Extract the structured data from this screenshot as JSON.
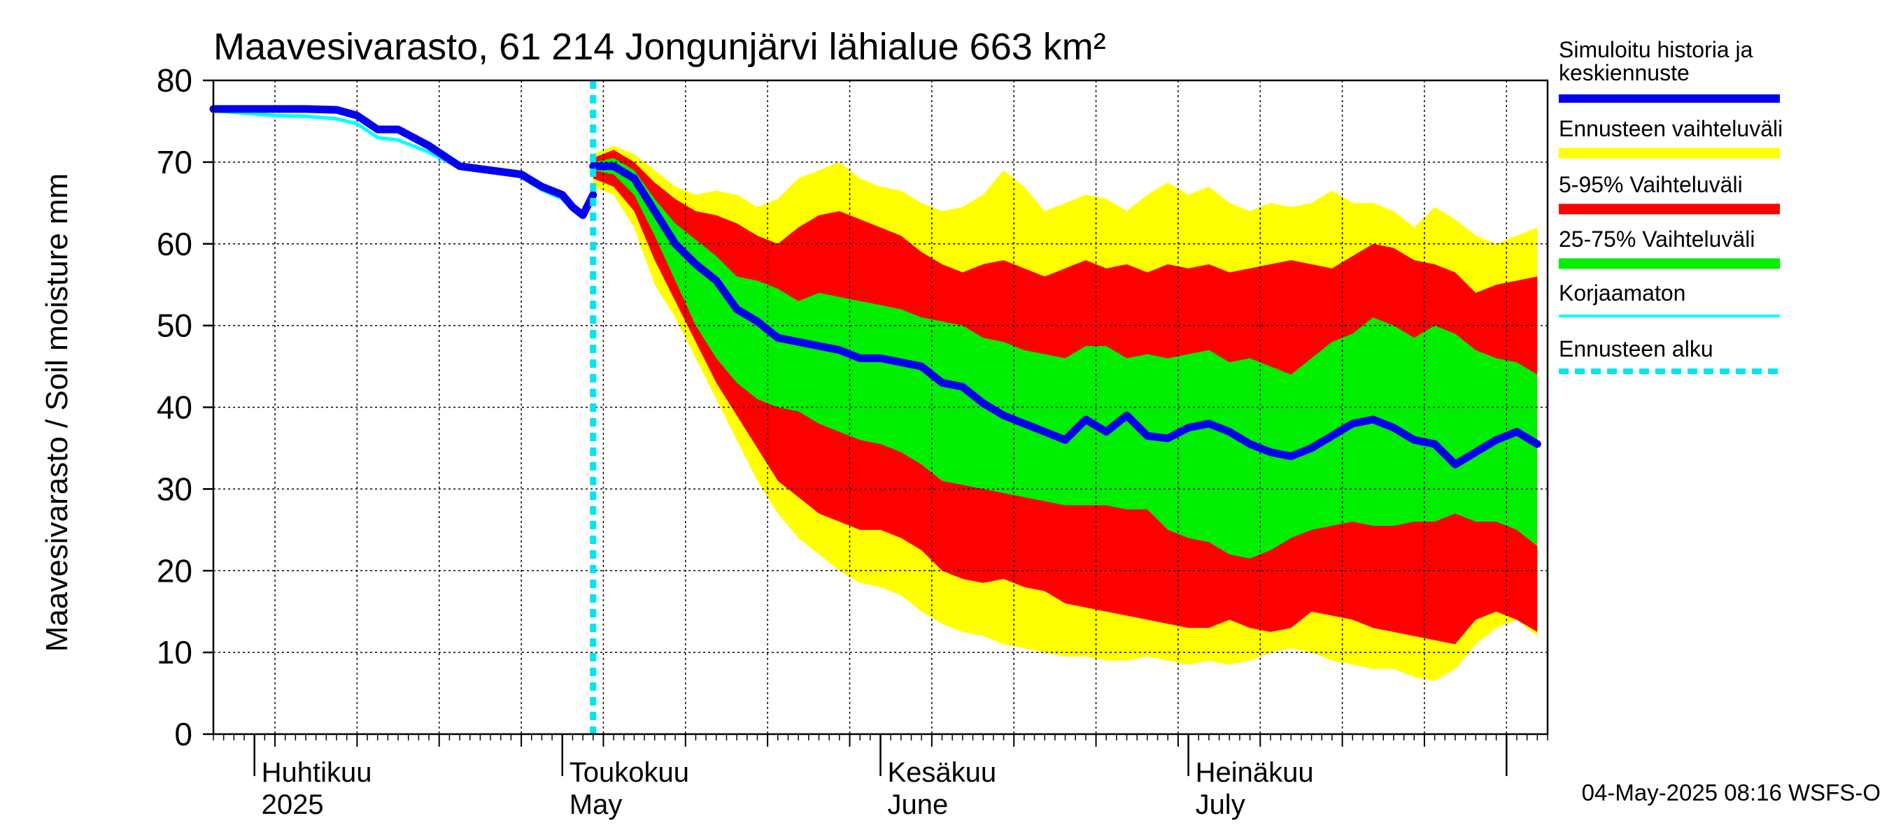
{
  "chart_data": {
    "type": "area",
    "title": "Maavesivarasto, 61 214 Jongunjärvi lähialue 663 km²",
    "ylabel": "Maavesivarasto / Soil moisture   mm",
    "xlabel": "",
    "ylim": [
      0,
      80
    ],
    "yticks": [
      "0",
      "10",
      "20",
      "30",
      "40",
      "50",
      "60",
      "70",
      "80"
    ],
    "xlim": [
      "2025-03-28",
      "2025-08-05"
    ],
    "x_month_labels": [
      {
        "fi": "Huhtikuu",
        "en": "2025",
        "date": "2025-04-01"
      },
      {
        "fi": "Toukokuu",
        "en": "May",
        "date": "2025-05-01"
      },
      {
        "fi": "Kesäkuu",
        "en": "June",
        "date": "2025-06-01"
      },
      {
        "fi": "Heinäkuu",
        "en": "July",
        "date": "2025-07-01"
      }
    ],
    "grid": true,
    "legend_position": "right",
    "forecast_start": "2025-05-04",
    "colors": {
      "history": "#0000ee",
      "range": "#ffff00",
      "p5_95": "#ff0000",
      "p25_75": "#00ee00",
      "uncorrected": "#00ffff",
      "forecast_start": "#00e5ee"
    },
    "legend": [
      {
        "key": "history",
        "label": "Simuloitu historia ja keskiennuste",
        "style": "thick"
      },
      {
        "key": "range",
        "label": "Ennusteen vaihteluväli",
        "style": "band"
      },
      {
        "key": "p5_95",
        "label": "5-95% Vaihteluväli",
        "style": "band"
      },
      {
        "key": "p25_75",
        "label": "25-75% Vaihteluväli",
        "style": "band"
      },
      {
        "key": "uncorrected",
        "label": "Korjaamaton",
        "style": "thin"
      },
      {
        "key": "forecast_start",
        "label": "Ennusteen alku",
        "style": "dashed"
      }
    ],
    "history": {
      "x": [
        "2025-03-28",
        "2025-03-31",
        "2025-04-03",
        "2025-04-06",
        "2025-04-09",
        "2025-04-11",
        "2025-04-13",
        "2025-04-15",
        "2025-04-18",
        "2025-04-21",
        "2025-04-24",
        "2025-04-27",
        "2025-04-29",
        "2025-05-01",
        "2025-05-02",
        "2025-05-03",
        "2025-05-04"
      ],
      "y": [
        76.5,
        76.5,
        76.5,
        76.5,
        76.4,
        75.7,
        74,
        74,
        72,
        69.5,
        69,
        68.5,
        67,
        66,
        64.5,
        63.5,
        66
      ]
    },
    "uncorrected": {
      "x": [
        "2025-03-28",
        "2025-03-31",
        "2025-04-03",
        "2025-04-06",
        "2025-04-09",
        "2025-04-11",
        "2025-04-13",
        "2025-04-15",
        "2025-04-18",
        "2025-04-21",
        "2025-04-24",
        "2025-04-27",
        "2025-04-29",
        "2025-05-01",
        "2025-05-02",
        "2025-05-03",
        "2025-05-04"
      ],
      "y": [
        76.3,
        76,
        75.7,
        75.6,
        75.3,
        74.7,
        73,
        72.7,
        71.2,
        69.3,
        68.8,
        68.2,
        66.6,
        65.5,
        64.2,
        63.8,
        66
      ]
    },
    "forecast": {
      "x": [
        "2025-05-04",
        "2025-05-06",
        "2025-05-08",
        "2025-05-10",
        "2025-05-12",
        "2025-05-14",
        "2025-05-16",
        "2025-05-18",
        "2025-05-20",
        "2025-05-22",
        "2025-05-24",
        "2025-05-26",
        "2025-05-28",
        "2025-05-30",
        "2025-06-01",
        "2025-06-03",
        "2025-06-05",
        "2025-06-07",
        "2025-06-09",
        "2025-06-11",
        "2025-06-13",
        "2025-06-15",
        "2025-06-17",
        "2025-06-19",
        "2025-06-21",
        "2025-06-23",
        "2025-06-25",
        "2025-06-27",
        "2025-06-29",
        "2025-07-01",
        "2025-07-03",
        "2025-07-05",
        "2025-07-07",
        "2025-07-09",
        "2025-07-11",
        "2025-07-13",
        "2025-07-15",
        "2025-07-17",
        "2025-07-19",
        "2025-07-21",
        "2025-07-23",
        "2025-07-25",
        "2025-07-27",
        "2025-07-29",
        "2025-07-31",
        "2025-08-02",
        "2025-08-04"
      ],
      "median": [
        69.5,
        69.5,
        68,
        64,
        60,
        57.5,
        55.5,
        52,
        50.5,
        48.5,
        48,
        47.5,
        47,
        46,
        46,
        45.5,
        45,
        43,
        42.5,
        40.5,
        39,
        38,
        37,
        36,
        38.5,
        37,
        39,
        36.5,
        36.2,
        37.5,
        38,
        37,
        35.5,
        34.5,
        34,
        35,
        36.5,
        38,
        38.5,
        37.5,
        36,
        35.5,
        33,
        34.5,
        36,
        37,
        35.5
      ],
      "p25": [
        69,
        68.5,
        66,
        61,
        55.5,
        50,
        46,
        43,
        41,
        40,
        39.5,
        38,
        37,
        36,
        35.5,
        34.5,
        33,
        31,
        30.5,
        30,
        29.5,
        29,
        28.5,
        28,
        28,
        28,
        27.5,
        27.5,
        25,
        24,
        23.5,
        22,
        21.5,
        22.5,
        24,
        25,
        25.5,
        26,
        25.5,
        25.5,
        26,
        26,
        27,
        26,
        26,
        25,
        23
      ],
      "p75": [
        70,
        70.5,
        69,
        65.5,
        62.5,
        60.5,
        58.5,
        56,
        55.5,
        54.5,
        53,
        54,
        53.5,
        53,
        52.5,
        52,
        51,
        50.5,
        50,
        48.5,
        48,
        47,
        46.5,
        46,
        47.5,
        47.5,
        46,
        46.5,
        46,
        46.5,
        47,
        45.5,
        46,
        45,
        44,
        46,
        48,
        49,
        51,
        50,
        48.5,
        50,
        49,
        47,
        46,
        45.5,
        44
      ],
      "p5": [
        68,
        67,
        64,
        58,
        53,
        48,
        43,
        39,
        35,
        31,
        29,
        27,
        26,
        25,
        25,
        24,
        22.5,
        20,
        19,
        18.5,
        19,
        18,
        17.5,
        16,
        15.5,
        15,
        14.5,
        14,
        13.5,
        13,
        13,
        14,
        13,
        12.5,
        13,
        15,
        14.5,
        14,
        13,
        12.5,
        12,
        11.5,
        11,
        14,
        15,
        14,
        12.5
      ],
      "p95": [
        70.5,
        71.5,
        70,
        67.5,
        65.5,
        64,
        63.5,
        62.5,
        61,
        60,
        62,
        63.5,
        64,
        63,
        62,
        61,
        59,
        57.5,
        56.5,
        57.5,
        58,
        57,
        56,
        57,
        58,
        57,
        57.5,
        56.5,
        57.5,
        57,
        57.5,
        56.5,
        57,
        57.5,
        58,
        57.5,
        57,
        58.5,
        60,
        59.5,
        58,
        57.5,
        56.5,
        54,
        55,
        55.5,
        56
      ],
      "min": [
        67,
        66,
        62,
        55,
        51,
        46,
        41,
        36,
        31,
        27,
        24,
        22,
        20,
        18.5,
        18,
        17,
        15,
        13.5,
        12.5,
        12,
        11,
        10.5,
        10,
        9.5,
        9.5,
        9,
        9,
        9.5,
        9,
        8.5,
        9,
        8.5,
        9,
        10,
        10.5,
        10,
        9,
        8.5,
        8,
        8,
        7,
        6.5,
        8,
        11,
        13,
        14,
        12
      ],
      "max": [
        71,
        72,
        71,
        69,
        67,
        66,
        66.5,
        66,
        64.5,
        65.5,
        68,
        69,
        70,
        68,
        67,
        66.5,
        65,
        64,
        64.5,
        66,
        69,
        67,
        64,
        65,
        66,
        65.5,
        64,
        66,
        67.5,
        66,
        67,
        65,
        64,
        65,
        64.5,
        65,
        66.5,
        65,
        65,
        64,
        62,
        64.5,
        63,
        61,
        60,
        61,
        62
      ]
    },
    "footer": "04-May-2025 08:16 WSFS-O"
  }
}
